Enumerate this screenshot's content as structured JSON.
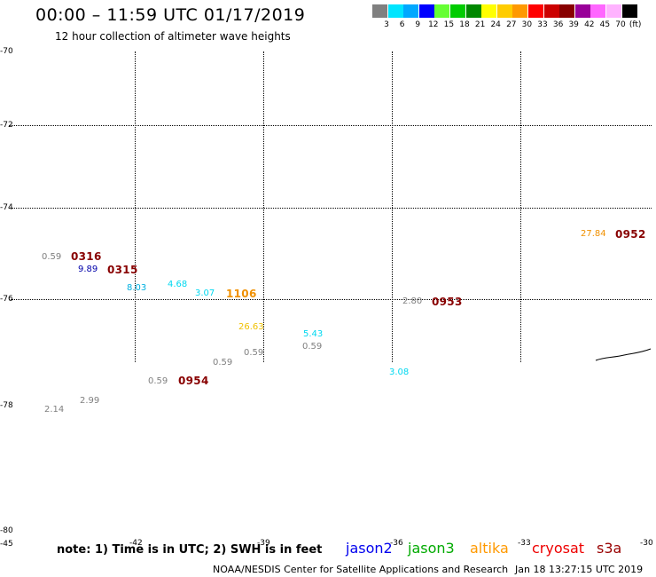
{
  "header": {
    "title": "00:00 – 11:59 UTC 01/17/2019",
    "subtitle": "12 hour collection of altimeter wave heights"
  },
  "legend": {
    "unit": "(ft)",
    "items": [
      {
        "color": "#808080",
        "label": "3"
      },
      {
        "color": "#00e5ff",
        "label": "6"
      },
      {
        "color": "#00a8ff",
        "label": "9"
      },
      {
        "color": "#0000ff",
        "label": "12"
      },
      {
        "color": "#66ff33",
        "label": "15"
      },
      {
        "color": "#00cc00",
        "label": "18"
      },
      {
        "color": "#008800",
        "label": "21"
      },
      {
        "color": "#ffff00",
        "label": "24"
      },
      {
        "color": "#ffcc00",
        "label": "27"
      },
      {
        "color": "#ff9900",
        "label": "30"
      },
      {
        "color": "#ff0000",
        "label": "33"
      },
      {
        "color": "#cc0000",
        "label": "36"
      },
      {
        "color": "#880000",
        "label": "39"
      },
      {
        "color": "#990099",
        "label": "42"
      },
      {
        "color": "#ff66ff",
        "label": "45"
      },
      {
        "color": "#ffb3ff",
        "label": "70"
      },
      {
        "color": "#000000",
        "label": ""
      }
    ]
  },
  "map": {
    "lat_labels": [
      "-70",
      "-72",
      "-74",
      "-76",
      "-78",
      "-80"
    ],
    "lon_labels": [
      "-45",
      "-42",
      "-39",
      "-36",
      "-33",
      "-30"
    ],
    "points": [
      {
        "text": "0.59",
        "color": "#808080"
      },
      {
        "text": "9.89",
        "color": "#0000aa"
      },
      {
        "text": "8.03",
        "color": "#00b0e0"
      },
      {
        "text": "4.68",
        "color": "#00d8f0"
      },
      {
        "text": "3.07",
        "color": "#00d8f0"
      },
      {
        "text": "26.63",
        "color": "#f0c000"
      },
      {
        "text": "5.43",
        "color": "#00d8f0"
      },
      {
        "text": "0.59",
        "color": "#808080"
      },
      {
        "text": "0.59",
        "color": "#808080"
      },
      {
        "text": "0.59",
        "color": "#808080"
      },
      {
        "text": "0.59",
        "color": "#808080"
      },
      {
        "text": "2.99",
        "color": "#808080"
      },
      {
        "text": "2.14",
        "color": "#808080"
      },
      {
        "text": "2.80",
        "color": "#808080"
      },
      {
        "text": "3.08",
        "color": "#00d8f0"
      },
      {
        "text": "27.84",
        "color": "#f09000"
      }
    ],
    "times": [
      {
        "text": "0316",
        "color": "#880000"
      },
      {
        "text": "0315",
        "color": "#880000"
      },
      {
        "text": "1106",
        "color": "#f09000"
      },
      {
        "text": "0954",
        "color": "#880000"
      },
      {
        "text": "0953",
        "color": "#880000"
      },
      {
        "text": "0952",
        "color": "#880000"
      }
    ]
  },
  "footer": {
    "note": "note: 1) Time is in UTC; 2) SWH is in feet",
    "satellites": [
      {
        "name": "jason2",
        "color": "#0000ee"
      },
      {
        "name": "jason3",
        "color": "#00aa00"
      },
      {
        "name": "altika",
        "color": "#ff9900"
      },
      {
        "name": "cryosat",
        "color": "#ee0000"
      },
      {
        "name": "s3a",
        "color": "#990000"
      }
    ],
    "credit": "NOAA/NESDIS Center for Satellite Applications and Research",
    "timestamp": "Jan 18 13:27:15 UTC 2019"
  }
}
